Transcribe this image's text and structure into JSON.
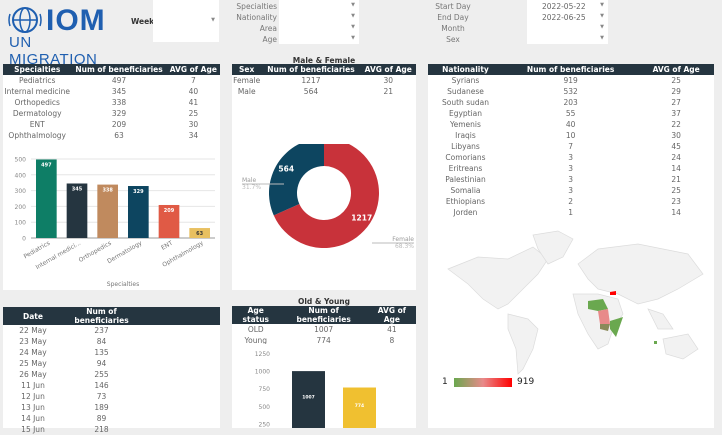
{
  "logo": {
    "text": "IOM",
    "subtitle": "UN MIGRATION"
  },
  "filters": {
    "week": {
      "label": "Week",
      "value": ""
    },
    "specialties": {
      "label": "Specialties",
      "value": ""
    },
    "nationality": {
      "label": "Nationality",
      "value": ""
    },
    "area": {
      "label": "Area",
      "value": ""
    },
    "age": {
      "label": "Age",
      "value": ""
    },
    "start_day": {
      "label": "Start Day",
      "value": "2022-05-22"
    },
    "end_day": {
      "label": "End Day",
      "value": "2022-06-25"
    },
    "month": {
      "label": "Month",
      "value": ""
    },
    "sex": {
      "label": "Sex",
      "value": ""
    }
  },
  "specialties_table": {
    "headers": [
      "Specialties",
      "Num of beneficiaries",
      "AVG of Age"
    ],
    "rows": [
      [
        "Pediatrics",
        "497",
        "7"
      ],
      [
        "Internal medicine",
        "345",
        "40"
      ],
      [
        "Orthopedics",
        "338",
        "41"
      ],
      [
        "Dermatology",
        "329",
        "25"
      ],
      [
        "ENT",
        "209",
        "30"
      ],
      [
        "Ophthalmology",
        "63",
        "34"
      ]
    ]
  },
  "sex_section": {
    "title": "Male & Female",
    "headers": [
      "Sex",
      "Num of beneficiaries",
      "AVG of Age"
    ],
    "rows": [
      [
        "Female",
        "1217",
        "30"
      ],
      [
        "Male",
        "564",
        "21"
      ]
    ]
  },
  "nationality_table": {
    "headers": [
      "Nationality",
      "Num of beneficiaries",
      "AVG of Age"
    ],
    "rows": [
      [
        "Syrians",
        "919",
        "25"
      ],
      [
        "Sudanese",
        "532",
        "29"
      ],
      [
        "South sudan",
        "203",
        "27"
      ],
      [
        "Egyptian",
        "55",
        "37"
      ],
      [
        "Yemenis",
        "40",
        "22"
      ],
      [
        "Iraqis",
        "10",
        "30"
      ],
      [
        "Libyans",
        "7",
        "45"
      ],
      [
        "Comorians",
        "3",
        "24"
      ],
      [
        "Eritreans",
        "3",
        "14"
      ],
      [
        "Palestinian",
        "3",
        "21"
      ],
      [
        "Somalia",
        "3",
        "25"
      ],
      [
        "Ethiopians",
        "2",
        "23"
      ],
      [
        "Jorden",
        "1",
        "14"
      ]
    ]
  },
  "date_table": {
    "headers": [
      "Date",
      "Num of beneficiaries"
    ],
    "rows": [
      [
        "22 May",
        "237"
      ],
      [
        "23 May",
        "84"
      ],
      [
        "24 May",
        "135"
      ],
      [
        "25 May",
        "94"
      ],
      [
        "26 May",
        "255"
      ],
      [
        "11 Jun",
        "146"
      ],
      [
        "12 Jun",
        "73"
      ],
      [
        "13 Jun",
        "189"
      ],
      [
        "14 Jun",
        "89"
      ],
      [
        "15 Jun",
        "218"
      ]
    ]
  },
  "age_section": {
    "title": "Old & Young",
    "headers": [
      "Age status",
      "Num of beneficiaries",
      "AVG of Age"
    ],
    "rows": [
      [
        "OLD",
        "1007",
        "41"
      ],
      [
        "Young",
        "774",
        "8"
      ]
    ]
  },
  "map": {
    "legend_min": "1",
    "legend_max": "919",
    "colors": {
      "low": "#6aa84f",
      "mid": "#e88a8a",
      "high": "#ff0000"
    }
  },
  "chart_data": [
    {
      "type": "bar",
      "xlabel": "Specialties",
      "ylabel": "",
      "ylim": [
        0,
        500
      ],
      "yticks": [
        "0",
        "100",
        "200",
        "300",
        "400",
        "500"
      ],
      "grid": true,
      "categories": [
        "Pediatrics",
        "Internal medici...",
        "Orthopedics",
        "Dermatology",
        "ENT",
        "Ophthalmology"
      ],
      "values": [
        497,
        345,
        338,
        329,
        209,
        63
      ],
      "colors": [
        "#0e7e66",
        "#253540",
        "#c08a5e",
        "#0d4560",
        "#e05a45",
        "#e8c060"
      ]
    },
    {
      "type": "pie",
      "donut": true,
      "slices": [
        {
          "label": "Female",
          "value": 1217,
          "percent": "68.3%",
          "color": "#c8323a"
        },
        {
          "label": "Male",
          "value": 564,
          "percent": "31.7%",
          "color": "#0d4560"
        }
      ]
    },
    {
      "type": "bar",
      "ylim": [
        0,
        1250
      ],
      "yticks": [
        "250",
        "500",
        "750",
        "1000",
        "1250"
      ],
      "categories": [
        "OLD",
        "Young"
      ],
      "values": [
        1007,
        774
      ],
      "colors": [
        "#253540",
        "#f0c030"
      ]
    }
  ]
}
